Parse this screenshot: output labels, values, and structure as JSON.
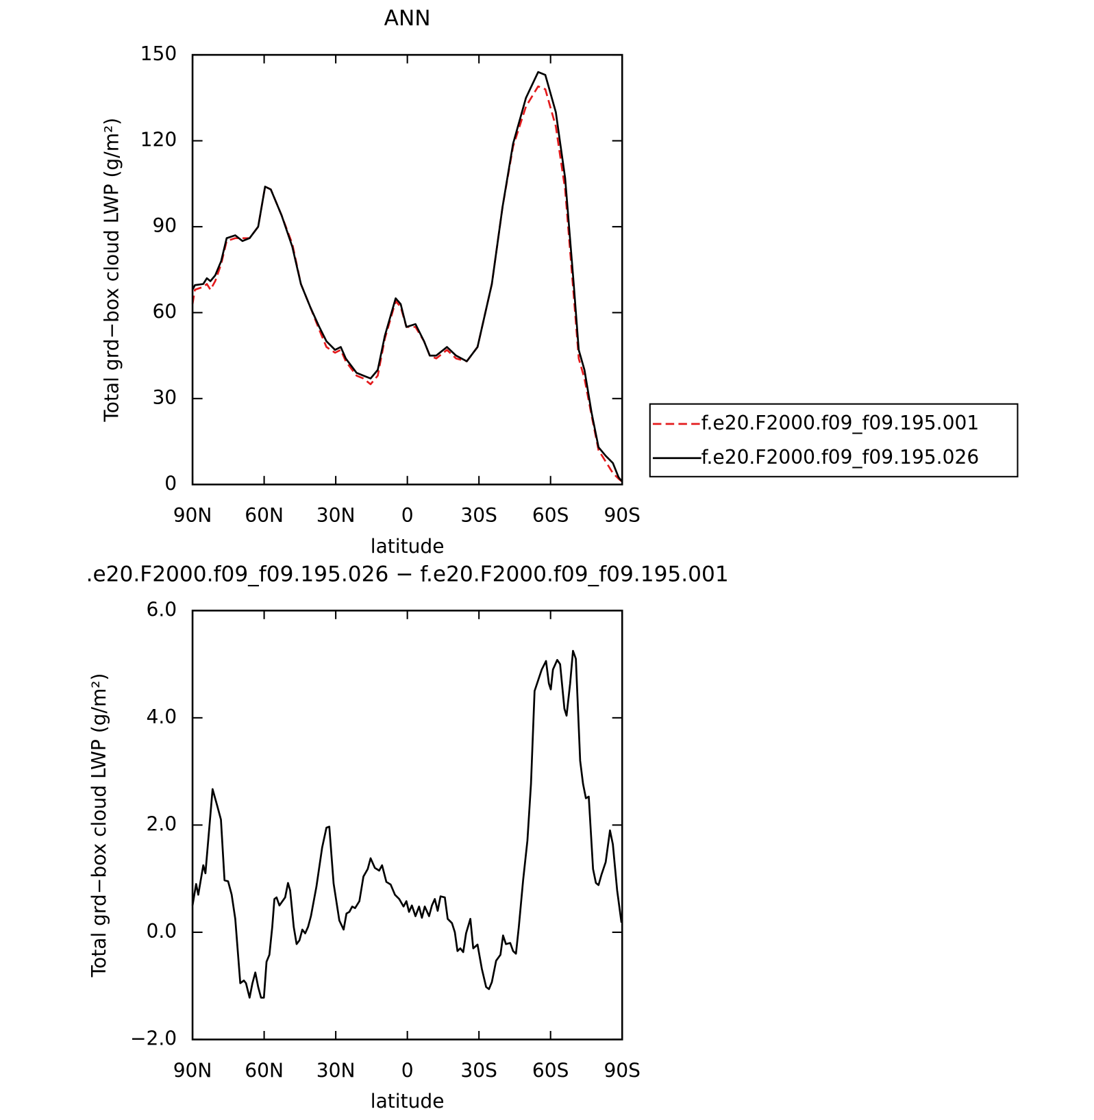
{
  "chart_data": [
    {
      "type": "line",
      "title": "ANN",
      "xlabel": "latitude",
      "ylabel": "Total grd−box cloud LWP (g/m²)",
      "xlim": [
        90,
        -90
      ],
      "xticks": [
        {
          "value": 90,
          "label": "90N"
        },
        {
          "value": 60,
          "label": "60N"
        },
        {
          "value": 30,
          "label": "30N"
        },
        0,
        {
          "value": -30,
          "label": "30S"
        },
        {
          "value": -60,
          "label": "60S"
        },
        {
          "value": -90,
          "label": "90S"
        }
      ],
      "ylim": [
        0,
        150
      ],
      "yticks": [
        0,
        30,
        60,
        90,
        120,
        150
      ],
      "legend": "outside right",
      "x": [
        90,
        89,
        85.5,
        84,
        82.5,
        80.5,
        78,
        75.7,
        72.1,
        69.1,
        66.1,
        62.5,
        59.6,
        57.2,
        52.7,
        48.2,
        44.6,
        40.7,
        36.9,
        33.9,
        30.3,
        27.9,
        25.8,
        21.3,
        18.4,
        15.4,
        12.4,
        9.4,
        4.9,
        2.8,
        0.4,
        -3.4,
        -7,
        -9.4,
        -12.1,
        -16.6,
        -20.4,
        -24.9,
        -29.4,
        -35.4,
        -39.9,
        -44.3,
        -49.7,
        -54.8,
        -57.8,
        -62.2,
        -66.1,
        -69.7,
        -71.8,
        -74.2,
        -77.2,
        -80.1,
        -83.1,
        -86.1,
        -88.5,
        -90
      ],
      "series": [
        {
          "name": "f.e20.F2000.f09_f09.195.001",
          "color": "#e31a1c",
          "dashed": true,
          "values": [
            63,
            68,
            69,
            70,
            68,
            71,
            77,
            85,
            86,
            86,
            86,
            90,
            104,
            103,
            94,
            84,
            70,
            62,
            54,
            48,
            46,
            47,
            43,
            38,
            37,
            35,
            38,
            51,
            64,
            62,
            55,
            55,
            50,
            45,
            44,
            47,
            44,
            43,
            48,
            70,
            97,
            118,
            132,
            139,
            138,
            125,
            103,
            66,
            44,
            37,
            24,
            12,
            8,
            4,
            2,
            1
          ]
        },
        {
          "name": "f.e20.F2000.f09_f09.195.026",
          "color": "#000000",
          "dashed": false,
          "values": [
            68,
            69.6,
            70,
            72,
            71,
            73,
            78,
            86,
            87,
            85,
            86,
            90,
            104,
            103,
            94,
            83,
            70,
            62,
            55,
            50,
            47,
            48,
            44,
            39,
            38,
            37,
            40,
            52,
            65,
            63,
            55,
            56,
            50,
            45,
            45,
            48,
            45,
            43,
            48,
            70,
            97,
            119,
            135,
            144,
            143,
            130,
            107,
            70,
            47,
            40,
            25,
            13,
            10,
            7.5,
            2.5,
            1
          ]
        }
      ]
    },
    {
      "type": "line",
      "title": ".e20.F2000.f09_f09.195.026 − f.e20.F2000.f09_f09.195.001",
      "xlabel": "latitude",
      "ylabel": "Total grd−box cloud LWP (g/m²)",
      "xlim": [
        90,
        -90
      ],
      "xticks": [
        {
          "value": 90,
          "label": "90N"
        },
        {
          "value": 60,
          "label": "60N"
        },
        {
          "value": 30,
          "label": "30N"
        },
        0,
        {
          "value": -30,
          "label": "30S"
        },
        {
          "value": -60,
          "label": "60S"
        },
        {
          "value": -90,
          "label": "90S"
        }
      ],
      "ylim": [
        -2,
        6
      ],
      "yticks": [
        {
          "value": -2,
          "label": "−2.0"
        },
        {
          "value": 0,
          "label": "0.0"
        },
        {
          "value": 2,
          "label": "2.0"
        },
        {
          "value": 4,
          "label": "4.0"
        },
        {
          "value": 6,
          "label": "6.0"
        }
      ],
      "x": [
        90,
        88.5,
        87.6,
        85.5,
        84.6,
        81.6,
        79.6,
        78.1,
        76.6,
        75.1,
        73.6,
        72.1,
        70,
        68.5,
        67.6,
        66.1,
        64.9,
        63.7,
        62.5,
        61.3,
        60.1,
        59,
        57.8,
        56.6,
        55.7,
        54.8,
        53.6,
        51.2,
        50,
        49.1,
        47.6,
        46.4,
        45.2,
        44,
        42.8,
        41.6,
        40.4,
        38.1,
        35.7,
        33.9,
        32.7,
        30.9,
        28.5,
        26.7,
        25.5,
        24.3,
        23.1,
        21.9,
        20.1,
        18.4,
        16.6,
        15.4,
        13.6,
        11.8,
        10.6,
        8.8,
        7,
        5.2,
        3.4,
        1.6,
        0.4,
        -0.7,
        -1.9,
        -3.4,
        -4.9,
        -6.1,
        -7.3,
        -9.1,
        -10.3,
        -11.5,
        -12.7,
        -13.9,
        -15.7,
        -16.9,
        -18.7,
        -19.9,
        -21,
        -22.2,
        -23.4,
        -24.6,
        -26.4,
        -27.6,
        -29.4,
        -31.2,
        -33,
        -34.2,
        -35.4,
        -37.2,
        -39,
        -40.1,
        -41.3,
        -43.1,
        -44.3,
        -45.5,
        -46.7,
        -48.5,
        -50.3,
        -51.8,
        -53.3,
        -54.8,
        -56.3,
        -58.1,
        -59.3,
        -60.1,
        -61,
        -62.8,
        -64,
        -65.8,
        -66.7,
        -68.2,
        -69.4,
        -70.6,
        -72.4,
        -73.6,
        -74.8,
        -76,
        -77.8,
        -79,
        -80.1,
        -81.3,
        -83.1,
        -84.9,
        -86.1,
        -87.9,
        -89.7
      ],
      "series": [
        {
          "color": "#000000",
          "dashed": false,
          "values": [
            0.5,
            0.9,
            0.7,
            1.25,
            1.1,
            2.67,
            2.35,
            2.1,
            0.97,
            0.95,
            0.7,
            0.25,
            -0.95,
            -0.9,
            -0.95,
            -1.22,
            -0.95,
            -0.75,
            -1.02,
            -1.22,
            -1.22,
            -0.55,
            -0.42,
            0.1,
            0.62,
            0.65,
            0.5,
            0.65,
            0.92,
            0.78,
            0.1,
            -0.22,
            -0.15,
            0.05,
            -0.02,
            0.1,
            0.3,
            0.85,
            1.58,
            1.95,
            1.97,
            0.91,
            0.22,
            0.05,
            0.35,
            0.38,
            0.48,
            0.45,
            0.58,
            1.04,
            1.18,
            1.38,
            1.2,
            1.15,
            1.25,
            0.94,
            0.89,
            0.7,
            0.62,
            0.48,
            0.58,
            0.38,
            0.5,
            0.3,
            0.48,
            0.27,
            0.48,
            0.3,
            0.5,
            0.62,
            0.4,
            0.67,
            0.65,
            0.25,
            0.17,
            0,
            -0.35,
            -0.3,
            -0.37,
            -0.02,
            0.25,
            -0.3,
            -0.23,
            -0.68,
            -1.02,
            -1.06,
            -0.93,
            -0.53,
            -0.42,
            -0.06,
            -0.22,
            -0.2,
            -0.35,
            -0.4,
            0.1,
            0.97,
            1.71,
            2.77,
            4.5,
            4.7,
            4.9,
            5.06,
            4.64,
            4.53,
            4.9,
            5.08,
            5.0,
            4.17,
            4.04,
            4.64,
            5.25,
            5.1,
            3.2,
            2.77,
            2.5,
            2.53,
            1.18,
            0.92,
            0.88,
            1.07,
            1.31,
            1.9,
            1.64,
            0.78,
            0.18
          ]
        }
      ]
    }
  ]
}
